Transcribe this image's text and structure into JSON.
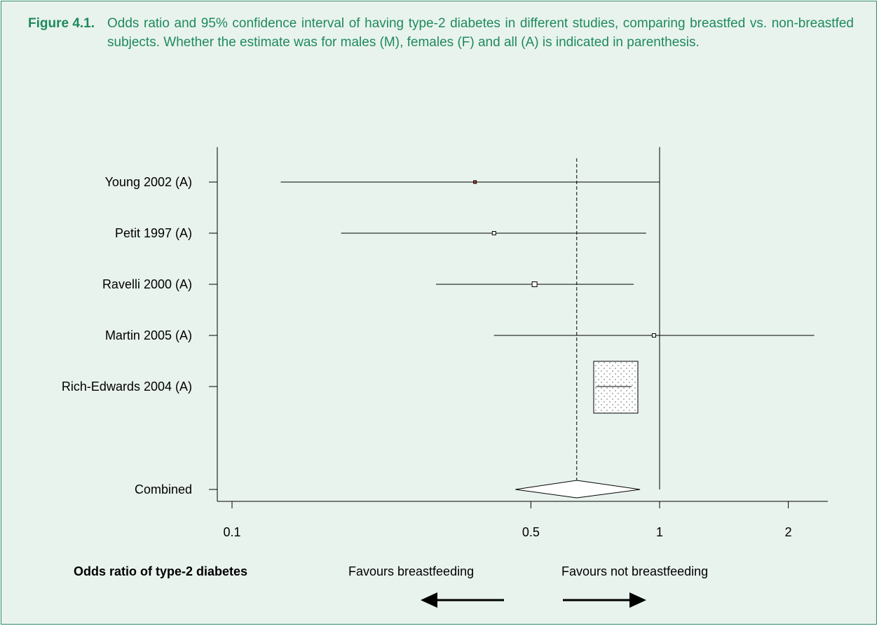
{
  "figure": {
    "label": "Figure 4.1.",
    "caption": "Odds ratio and 95% confidence interval of having type-2 diabetes in different studies, comparing breastfed vs. non-breastfed subjects. Whether the estimate was for males (M), females (F) and all (A) is indicated in parenthesis."
  },
  "colors": {
    "panel_background": "#e9f3ee",
    "caption_text": "#1e8a5c",
    "border": "#2c8a63",
    "ink": "#000000",
    "marker_fill": "#c0392b"
  },
  "chart_data": {
    "type": "forest",
    "xlabel": "Odds ratio of type-2 diabetes",
    "x_scale": "log",
    "xlim": [
      0.09,
      2.5
    ],
    "x_ticks": [
      0.1,
      0.5,
      1,
      2
    ],
    "x_tick_labels": [
      "0.1",
      "0.5",
      "1",
      "2"
    ],
    "reference_line": 1,
    "pooled_reference_line": 0.64,
    "studies": [
      {
        "label": "Young 2002 (A)",
        "or": 0.37,
        "lower": 0.13,
        "upper": 1.0
      },
      {
        "label": "Petit 1997 (A)",
        "or": 0.41,
        "lower": 0.18,
        "upper": 0.93
      },
      {
        "label": "Ravelli 2000 (A)",
        "or": 0.51,
        "lower": 0.3,
        "upper": 0.87
      },
      {
        "label": "Martin 2005 (A)",
        "or": 0.97,
        "lower": 0.41,
        "upper": 2.3
      },
      {
        "label": "Rich-Edwards 2004 (A)",
        "or": 0.78,
        "lower": 0.71,
        "upper": 0.86
      }
    ],
    "combined": {
      "label": "Combined",
      "or": 0.64,
      "lower": 0.46,
      "upper": 0.9
    },
    "direction_left": "Favours breastfeeding",
    "direction_right": "Favours not breastfeeding"
  }
}
